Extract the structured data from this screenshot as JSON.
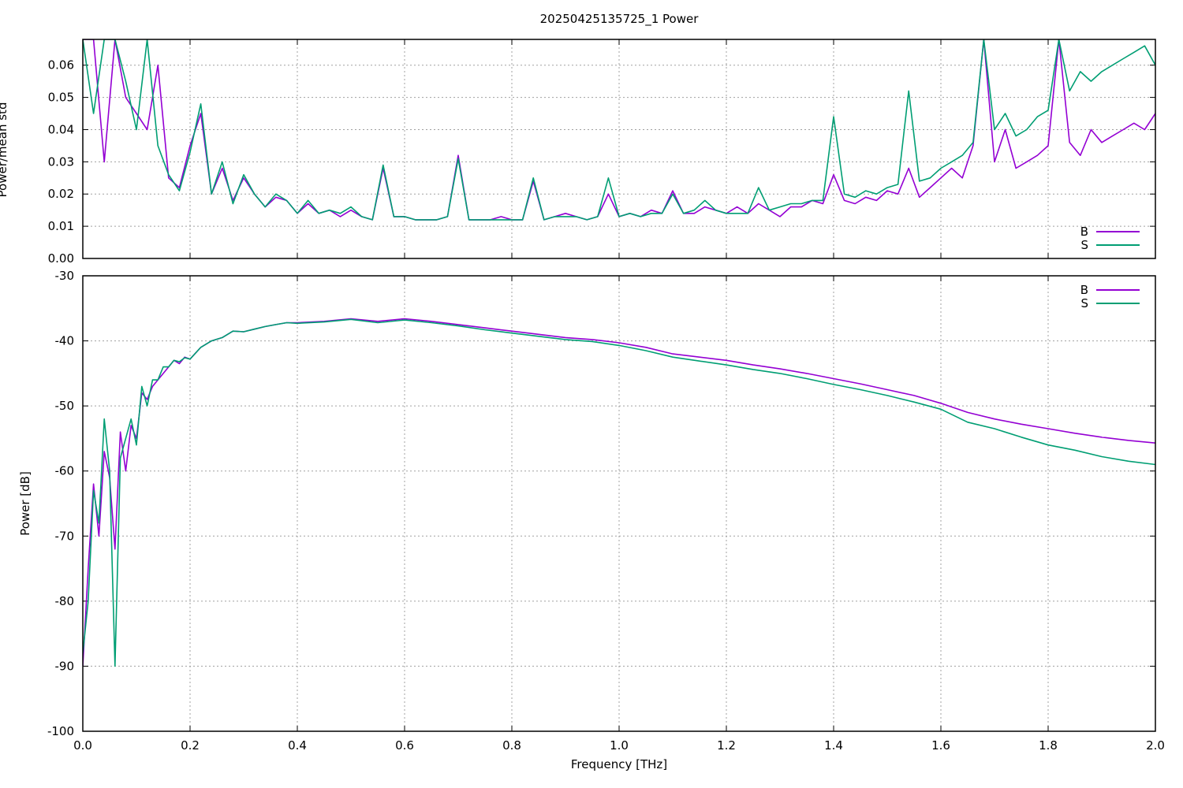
{
  "chart_data": [
    {
      "type": "line",
      "title": "20250425135725_1 Power",
      "xlabel": "",
      "ylabel": "Power/mean std",
      "xlim": [
        0.0,
        2.0
      ],
      "ylim": [
        0.0,
        0.068
      ],
      "xticks": [
        0.0,
        0.2,
        0.4,
        0.6,
        0.8,
        1.0,
        1.2,
        1.4,
        1.6,
        1.8,
        2.0
      ],
      "yticks": [
        "0.00",
        "0.01",
        "0.02",
        "0.03",
        "0.04",
        "0.05",
        "0.06"
      ],
      "grid": true,
      "legend": "bottom-right",
      "colors": {
        "B": "#9400d3",
        "S": "#009e73"
      },
      "series": [
        {
          "name": "B",
          "x": [
            0.0,
            0.02,
            0.04,
            0.06,
            0.08,
            0.1,
            0.12,
            0.14,
            0.16,
            0.18,
            0.2,
            0.22,
            0.24,
            0.26,
            0.28,
            0.3,
            0.32,
            0.34,
            0.36,
            0.38,
            0.4,
            0.42,
            0.44,
            0.46,
            0.48,
            0.5,
            0.52,
            0.54,
            0.56,
            0.58,
            0.6,
            0.62,
            0.64,
            0.66,
            0.68,
            0.7,
            0.72,
            0.74,
            0.76,
            0.78,
            0.8,
            0.82,
            0.84,
            0.86,
            0.88,
            0.9,
            0.92,
            0.94,
            0.96,
            0.98,
            1.0,
            1.02,
            1.04,
            1.06,
            1.08,
            1.1,
            1.12,
            1.14,
            1.16,
            1.18,
            1.2,
            1.22,
            1.24,
            1.26,
            1.28,
            1.3,
            1.32,
            1.34,
            1.36,
            1.38,
            1.4,
            1.42,
            1.44,
            1.46,
            1.48,
            1.5,
            1.52,
            1.54,
            1.56,
            1.58,
            1.6,
            1.62,
            1.64,
            1.66,
            1.68,
            1.7,
            1.72,
            1.74,
            1.76,
            1.78,
            1.8,
            1.82,
            1.84,
            1.86,
            1.88,
            1.9,
            1.92,
            1.94,
            1.96,
            1.98,
            2.0
          ],
          "y": [
            0.068,
            0.068,
            0.03,
            0.068,
            0.05,
            0.045,
            0.04,
            0.06,
            0.025,
            0.022,
            0.035,
            0.045,
            0.02,
            0.028,
            0.018,
            0.025,
            0.02,
            0.016,
            0.019,
            0.018,
            0.014,
            0.017,
            0.014,
            0.015,
            0.013,
            0.015,
            0.013,
            0.012,
            0.028,
            0.013,
            0.013,
            0.012,
            0.012,
            0.012,
            0.013,
            0.032,
            0.012,
            0.012,
            0.012,
            0.013,
            0.012,
            0.012,
            0.024,
            0.012,
            0.013,
            0.014,
            0.013,
            0.012,
            0.013,
            0.02,
            0.013,
            0.014,
            0.013,
            0.015,
            0.014,
            0.021,
            0.014,
            0.014,
            0.016,
            0.015,
            0.014,
            0.016,
            0.014,
            0.017,
            0.015,
            0.013,
            0.016,
            0.016,
            0.018,
            0.017,
            0.026,
            0.018,
            0.017,
            0.019,
            0.018,
            0.021,
            0.02,
            0.028,
            0.019,
            0.022,
            0.025,
            0.028,
            0.025,
            0.035,
            0.068,
            0.03,
            0.04,
            0.028,
            0.03,
            0.032,
            0.035,
            0.068,
            0.036,
            0.032,
            0.04,
            0.036,
            0.038,
            0.04,
            0.042,
            0.04,
            0.045
          ]
        },
        {
          "name": "S",
          "x": [
            0.0,
            0.02,
            0.04,
            0.06,
            0.08,
            0.1,
            0.12,
            0.14,
            0.16,
            0.18,
            0.2,
            0.22,
            0.24,
            0.26,
            0.28,
            0.3,
            0.32,
            0.34,
            0.36,
            0.38,
            0.4,
            0.42,
            0.44,
            0.46,
            0.48,
            0.5,
            0.52,
            0.54,
            0.56,
            0.58,
            0.6,
            0.62,
            0.64,
            0.66,
            0.68,
            0.7,
            0.72,
            0.74,
            0.76,
            0.78,
            0.8,
            0.82,
            0.84,
            0.86,
            0.88,
            0.9,
            0.92,
            0.94,
            0.96,
            0.98,
            1.0,
            1.02,
            1.04,
            1.06,
            1.08,
            1.1,
            1.12,
            1.14,
            1.16,
            1.18,
            1.2,
            1.22,
            1.24,
            1.26,
            1.28,
            1.3,
            1.32,
            1.34,
            1.36,
            1.38,
            1.4,
            1.42,
            1.44,
            1.46,
            1.48,
            1.5,
            1.52,
            1.54,
            1.56,
            1.58,
            1.6,
            1.62,
            1.64,
            1.66,
            1.68,
            1.7,
            1.72,
            1.74,
            1.76,
            1.78,
            1.8,
            1.82,
            1.84,
            1.86,
            1.88,
            1.9,
            1.92,
            1.94,
            1.96,
            1.98,
            2.0
          ],
          "y": [
            0.068,
            0.045,
            0.068,
            0.068,
            0.055,
            0.04,
            0.068,
            0.035,
            0.026,
            0.021,
            0.033,
            0.048,
            0.02,
            0.03,
            0.017,
            0.026,
            0.02,
            0.016,
            0.02,
            0.018,
            0.014,
            0.018,
            0.014,
            0.015,
            0.014,
            0.016,
            0.013,
            0.012,
            0.029,
            0.013,
            0.013,
            0.012,
            0.012,
            0.012,
            0.013,
            0.031,
            0.012,
            0.012,
            0.012,
            0.012,
            0.012,
            0.012,
            0.025,
            0.012,
            0.013,
            0.013,
            0.013,
            0.012,
            0.013,
            0.025,
            0.013,
            0.014,
            0.013,
            0.014,
            0.014,
            0.02,
            0.014,
            0.015,
            0.018,
            0.015,
            0.014,
            0.014,
            0.014,
            0.022,
            0.015,
            0.016,
            0.017,
            0.017,
            0.018,
            0.018,
            0.044,
            0.02,
            0.019,
            0.021,
            0.02,
            0.022,
            0.023,
            0.052,
            0.024,
            0.025,
            0.028,
            0.03,
            0.032,
            0.036,
            0.068,
            0.04,
            0.045,
            0.038,
            0.04,
            0.044,
            0.046,
            0.068,
            0.052,
            0.058,
            0.055,
            0.058,
            0.06,
            0.062,
            0.064,
            0.066,
            0.06
          ]
        }
      ]
    },
    {
      "type": "line",
      "title": "",
      "xlabel": "Frequency [THz]",
      "ylabel": "Power [dB]",
      "xlim": [
        0.0,
        2.0
      ],
      "ylim": [
        -100,
        -30
      ],
      "xticks": [
        "0.0",
        "0.2",
        "0.4",
        "0.6",
        "0.8",
        "1.0",
        "1.2",
        "1.4",
        "1.6",
        "1.8",
        "2.0"
      ],
      "yticks": [
        "-30",
        "-40",
        "-50",
        "-60",
        "-70",
        "-80",
        "-90",
        "-100"
      ],
      "grid": true,
      "legend": "top-right",
      "colors": {
        "B": "#9400d3",
        "S": "#009e73"
      },
      "series": [
        {
          "name": "B",
          "x": [
            0.0,
            0.01,
            0.02,
            0.03,
            0.04,
            0.05,
            0.06,
            0.07,
            0.08,
            0.09,
            0.1,
            0.11,
            0.12,
            0.13,
            0.14,
            0.15,
            0.16,
            0.17,
            0.18,
            0.19,
            0.2,
            0.22,
            0.24,
            0.26,
            0.28,
            0.3,
            0.32,
            0.34,
            0.36,
            0.38,
            0.4,
            0.45,
            0.5,
            0.55,
            0.6,
            0.65,
            0.7,
            0.75,
            0.8,
            0.85,
            0.9,
            0.95,
            1.0,
            1.05,
            1.1,
            1.15,
            1.2,
            1.25,
            1.3,
            1.35,
            1.4,
            1.45,
            1.5,
            1.55,
            1.6,
            1.65,
            1.7,
            1.75,
            1.8,
            1.85,
            1.9,
            1.95,
            2.0
          ],
          "y": [
            -90,
            -75,
            -62,
            -70,
            -57,
            -61,
            -72,
            -54,
            -60,
            -53,
            -55,
            -48,
            -49,
            -47,
            -46,
            -45,
            -44,
            -43,
            -43.5,
            -42.5,
            -42.8,
            -41,
            -40,
            -39.5,
            -38.5,
            -38.6,
            -38.2,
            -37.8,
            -37.5,
            -37.2,
            -37.2,
            -37.0,
            -36.6,
            -37.0,
            -36.6,
            -37.0,
            -37.5,
            -38.0,
            -38.5,
            -39.0,
            -39.5,
            -39.8,
            -40.3,
            -41.0,
            -42.0,
            -42.5,
            -43.0,
            -43.7,
            -44.3,
            -45.0,
            -45.8,
            -46.6,
            -47.5,
            -48.4,
            -49.6,
            -51.0,
            -52.0,
            -52.8,
            -53.5,
            -54.2,
            -54.8,
            -55.3,
            -55.7
          ]
        },
        {
          "name": "S",
          "x": [
            0.0,
            0.01,
            0.02,
            0.03,
            0.04,
            0.05,
            0.06,
            0.07,
            0.08,
            0.09,
            0.1,
            0.11,
            0.12,
            0.13,
            0.14,
            0.15,
            0.16,
            0.17,
            0.18,
            0.19,
            0.2,
            0.22,
            0.24,
            0.26,
            0.28,
            0.3,
            0.32,
            0.34,
            0.36,
            0.38,
            0.4,
            0.45,
            0.5,
            0.55,
            0.6,
            0.65,
            0.7,
            0.75,
            0.8,
            0.85,
            0.9,
            0.95,
            1.0,
            1.05,
            1.1,
            1.15,
            1.2,
            1.25,
            1.3,
            1.35,
            1.4,
            1.45,
            1.5,
            1.55,
            1.6,
            1.65,
            1.7,
            1.75,
            1.8,
            1.85,
            1.9,
            1.95,
            2.0
          ],
          "y": [
            -88,
            -80,
            -63,
            -68,
            -52,
            -60,
            -90,
            -58,
            -55,
            -52,
            -56,
            -47,
            -50,
            -46,
            -46,
            -44,
            -44,
            -43,
            -43.2,
            -42.6,
            -42.8,
            -41,
            -40,
            -39.5,
            -38.5,
            -38.6,
            -38.2,
            -37.8,
            -37.5,
            -37.2,
            -37.3,
            -37.1,
            -36.7,
            -37.2,
            -36.8,
            -37.2,
            -37.7,
            -38.3,
            -38.8,
            -39.3,
            -39.8,
            -40.1,
            -40.7,
            -41.5,
            -42.5,
            -43.1,
            -43.7,
            -44.4,
            -45.0,
            -45.8,
            -46.7,
            -47.5,
            -48.4,
            -49.4,
            -50.5,
            -52.5,
            -53.5,
            -54.8,
            -56.0,
            -56.8,
            -57.8,
            -58.5,
            -59.0
          ]
        }
      ]
    }
  ]
}
